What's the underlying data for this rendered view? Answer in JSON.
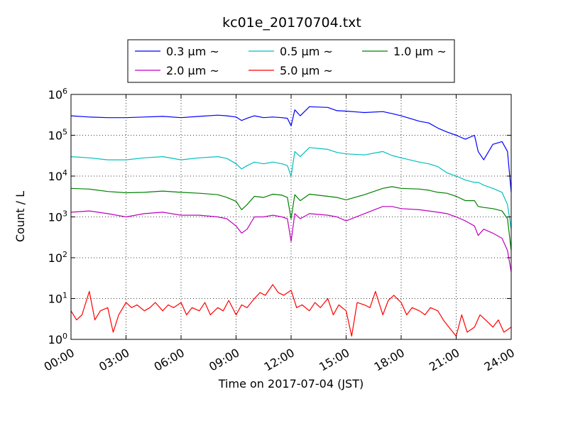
{
  "chart_data": {
    "type": "line",
    "title": "kc01e_20170704.txt",
    "xlabel": "Time on 2017-07-04 (JST)",
    "ylabel": "Count / L",
    "xlim": [
      0,
      24
    ],
    "ylim": [
      1,
      1000000
    ],
    "yscale": "log",
    "grid": true,
    "legend_position": "top-center",
    "x_ticks": [
      {
        "value": 0,
        "label": "00:00"
      },
      {
        "value": 3,
        "label": "03:00"
      },
      {
        "value": 6,
        "label": "06:00"
      },
      {
        "value": 9,
        "label": "09:00"
      },
      {
        "value": 12,
        "label": "12:00"
      },
      {
        "value": 15,
        "label": "15:00"
      },
      {
        "value": 18,
        "label": "18:00"
      },
      {
        "value": 21,
        "label": "21:00"
      },
      {
        "value": 24,
        "label": "24:00"
      }
    ],
    "y_ticks": [
      {
        "value": 1,
        "base": "10",
        "exp": "0"
      },
      {
        "value": 10,
        "base": "10",
        "exp": "1"
      },
      {
        "value": 100,
        "base": "10",
        "exp": "2"
      },
      {
        "value": 1000,
        "base": "10",
        "exp": "3"
      },
      {
        "value": 10000,
        "base": "10",
        "exp": "4"
      },
      {
        "value": 100000,
        "base": "10",
        "exp": "5"
      },
      {
        "value": 1000000,
        "base": "10",
        "exp": "6"
      }
    ],
    "series": [
      {
        "name": "0.3 μm ~",
        "color": "#0000ff",
        "x": [
          0,
          1,
          2,
          3,
          4,
          5,
          6,
          7,
          8,
          8.5,
          9,
          9.3,
          9.6,
          10,
          10.5,
          11,
          11.5,
          11.8,
          12,
          12.2,
          12.5,
          13,
          14,
          14.5,
          15,
          16,
          17,
          17.5,
          18,
          19,
          19.5,
          20,
          20.5,
          21,
          21.5,
          22,
          22.2,
          22.5,
          23,
          23.5,
          23.8,
          24
        ],
        "y": [
          300000,
          280000,
          270000,
          270000,
          280000,
          290000,
          270000,
          290000,
          310000,
          300000,
          280000,
          230000,
          260000,
          300000,
          270000,
          280000,
          270000,
          260000,
          170000,
          420000,
          300000,
          500000,
          480000,
          400000,
          390000,
          360000,
          380000,
          340000,
          300000,
          220000,
          200000,
          150000,
          120000,
          100000,
          80000,
          100000,
          40000,
          25000,
          60000,
          70000,
          40000,
          4000
        ]
      },
      {
        "name": "0.5 μm ~",
        "color": "#00bfbf",
        "x": [
          0,
          1,
          2,
          3,
          4,
          5,
          6,
          7,
          8,
          8.5,
          9,
          9.3,
          9.6,
          10,
          10.5,
          11,
          11.5,
          11.8,
          12,
          12.2,
          12.5,
          13,
          14,
          14.5,
          15,
          16,
          17,
          17.5,
          18,
          19,
          19.5,
          20,
          20.5,
          21,
          21.5,
          22,
          22.2,
          22.5,
          23,
          23.5,
          23.8,
          24
        ],
        "y": [
          30000,
          28000,
          25000,
          25000,
          28000,
          30000,
          25000,
          28000,
          30000,
          27000,
          20000,
          15000,
          18000,
          22000,
          20000,
          22000,
          20000,
          18000,
          10000,
          40000,
          30000,
          50000,
          45000,
          38000,
          35000,
          33000,
          40000,
          32000,
          28000,
          22000,
          20000,
          17000,
          12000,
          10000,
          8000,
          7000,
          7000,
          6000,
          5000,
          4000,
          2000,
          500
        ]
      },
      {
        "name": "1.0 μm ~",
        "color": "#008000",
        "x": [
          0,
          1,
          2,
          3,
          4,
          5,
          6,
          7,
          8,
          8.5,
          9,
          9.3,
          9.6,
          10,
          10.5,
          11,
          11.5,
          11.8,
          12,
          12.2,
          12.5,
          13,
          14,
          14.5,
          15,
          16,
          17,
          17.5,
          18,
          19,
          19.5,
          20,
          20.5,
          21,
          21.5,
          22,
          22.2,
          22.5,
          23,
          23.5,
          23.8,
          24
        ],
        "y": [
          5000,
          4800,
          4200,
          3900,
          4000,
          4300,
          4000,
          3800,
          3500,
          3000,
          2400,
          1500,
          2000,
          3200,
          3000,
          3600,
          3400,
          3000,
          900,
          3500,
          2500,
          3600,
          3200,
          3000,
          2600,
          3500,
          5000,
          5500,
          5000,
          4800,
          4500,
          4000,
          3800,
          3200,
          2500,
          2500,
          1800,
          1700,
          1600,
          1400,
          900,
          150
        ]
      },
      {
        "name": "2.0 μm ~",
        "color": "#bf00bf",
        "x": [
          0,
          1,
          2,
          3,
          4,
          5,
          6,
          7,
          8,
          8.5,
          9,
          9.3,
          9.6,
          10,
          10.5,
          11,
          11.5,
          11.8,
          12,
          12.2,
          12.5,
          13,
          14,
          14.5,
          15,
          16,
          17,
          17.5,
          18,
          19,
          19.5,
          20,
          20.5,
          21,
          21.5,
          22,
          22.2,
          22.5,
          23,
          23.5,
          23.8,
          24
        ],
        "y": [
          1300,
          1400,
          1200,
          1000,
          1200,
          1300,
          1100,
          1100,
          1000,
          900,
          600,
          400,
          500,
          1000,
          1000,
          1100,
          1000,
          900,
          250,
          1200,
          900,
          1200,
          1100,
          1000,
          800,
          1200,
          1800,
          1800,
          1600,
          1500,
          1400,
          1300,
          1200,
          1000,
          800,
          600,
          350,
          500,
          400,
          300,
          150,
          45
        ]
      },
      {
        "name": "5.0 μm ~",
        "color": "#ff0000",
        "x": [
          0,
          0.3,
          0.6,
          1,
          1.3,
          1.6,
          2,
          2.3,
          2.6,
          3,
          3.3,
          3.6,
          4,
          4.3,
          4.6,
          5,
          5.3,
          5.6,
          6,
          6.3,
          6.6,
          7,
          7.3,
          7.6,
          8,
          8.3,
          8.6,
          9,
          9.3,
          9.6,
          10,
          10.3,
          10.6,
          11,
          11.3,
          11.6,
          12,
          12.3,
          12.6,
          13,
          13.3,
          13.6,
          14,
          14.3,
          14.6,
          15,
          15.3,
          15.6,
          16,
          16.3,
          16.6,
          17,
          17.3,
          17.6,
          18,
          18.3,
          18.6,
          19,
          19.3,
          19.6,
          20,
          20.3,
          20.6,
          21,
          21.3,
          21.6,
          22,
          22.3,
          22.6,
          23,
          23.3,
          23.6,
          24
        ],
        "y": [
          5,
          3,
          4,
          15,
          3,
          5,
          6,
          1.5,
          4,
          8,
          6,
          7,
          5,
          6,
          8,
          5,
          7,
          6,
          8,
          4,
          6,
          5,
          8,
          4,
          6,
          5,
          9,
          4,
          7,
          6,
          10,
          14,
          12,
          22,
          14,
          12,
          16,
          6,
          7,
          5,
          8,
          6,
          10,
          4,
          7,
          5,
          1.2,
          8,
          7,
          6,
          15,
          4,
          9,
          12,
          8,
          4,
          6,
          5,
          4,
          6,
          5,
          3,
          2,
          1.2,
          4,
          1.5,
          2,
          4,
          3,
          2,
          3,
          1.5,
          2
        ]
      }
    ]
  }
}
